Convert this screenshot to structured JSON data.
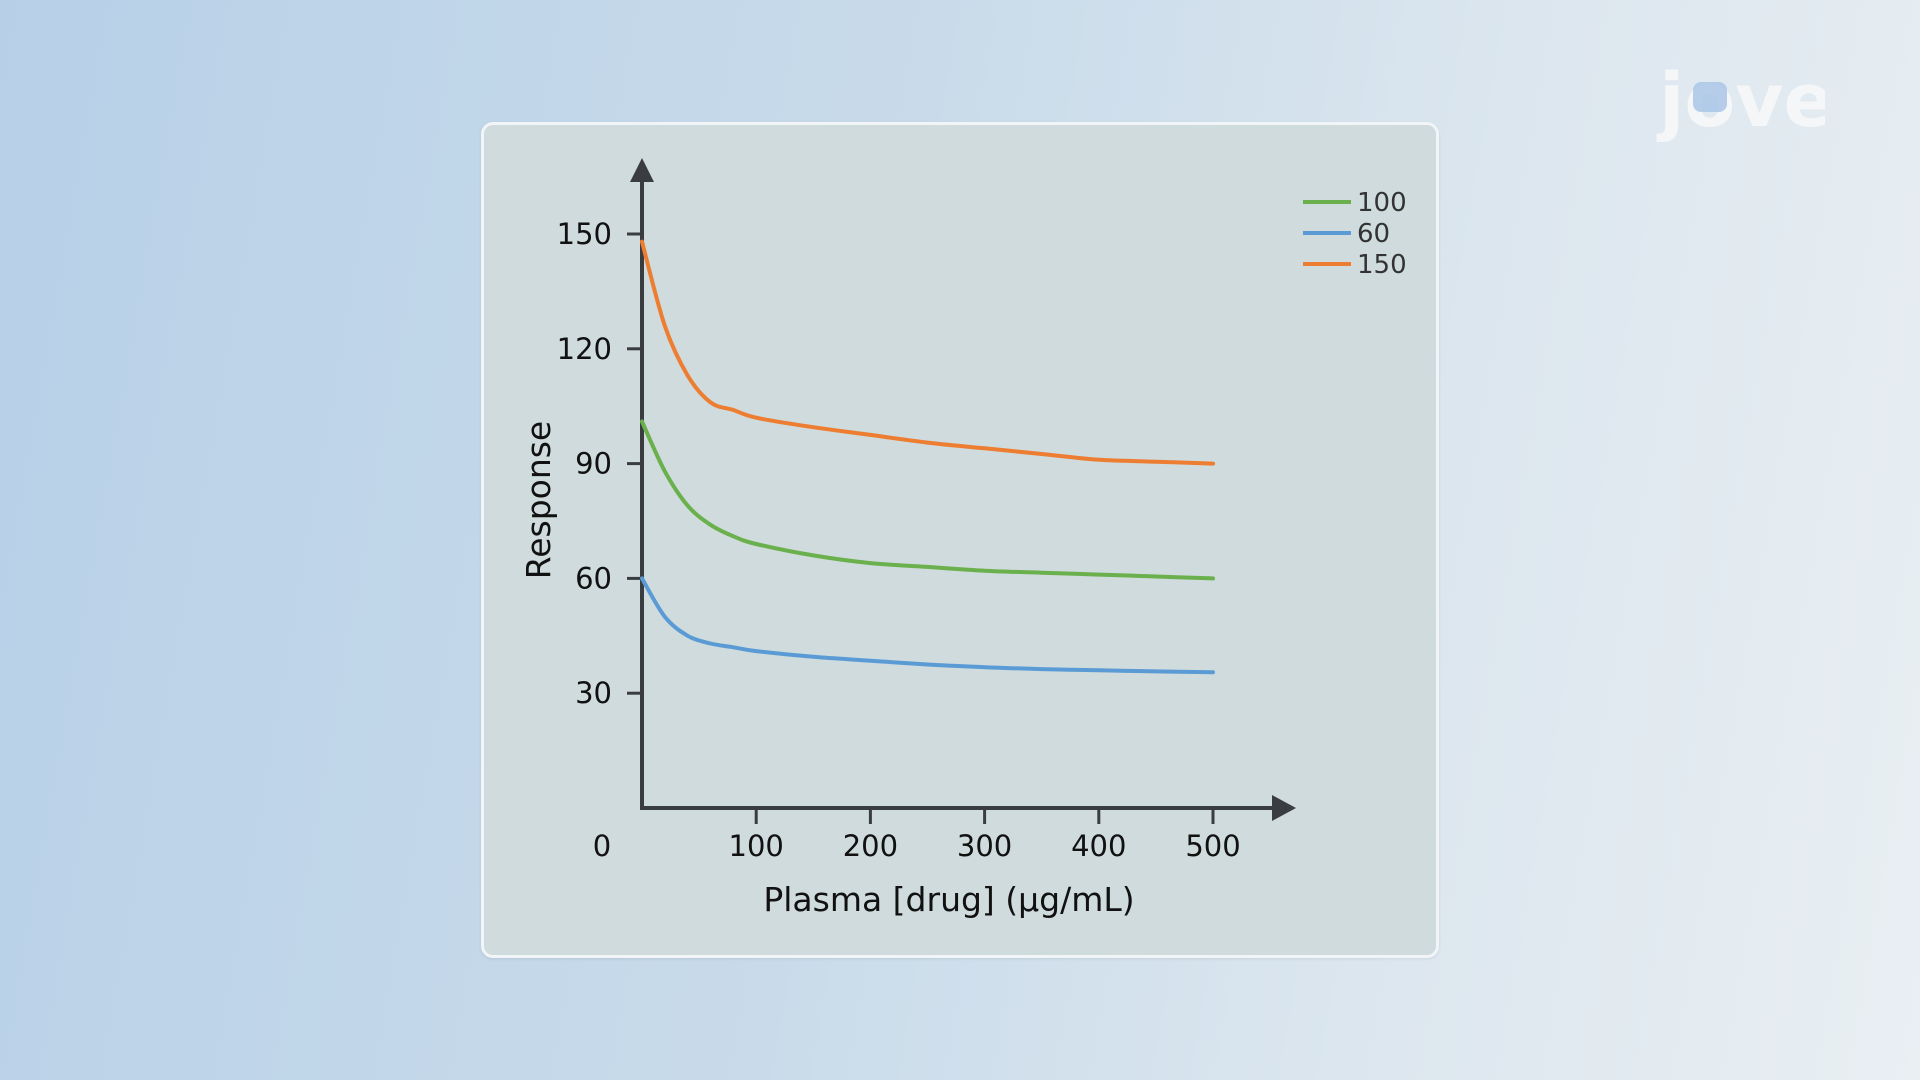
{
  "logo": {
    "text": "jove",
    "colors": {
      "letters": "#f4f6f8",
      "accent": "#a9c6e6"
    }
  },
  "chart_data": {
    "type": "line",
    "title": "",
    "xlabel": "Plasma [drug] (µg/mL)",
    "ylabel": "Response",
    "xlim": [
      0,
      500
    ],
    "ylim": [
      0,
      150
    ],
    "x_ticks": [
      100,
      200,
      300,
      400,
      500
    ],
    "y_ticks": [
      30,
      60,
      90,
      120,
      150
    ],
    "origin_label": "0",
    "grid": false,
    "legend_position": "top-right",
    "series": [
      {
        "name": "100",
        "color": "#6ab04c",
        "x": [
          0,
          20,
          40,
          60,
          80,
          100,
          150,
          200,
          250,
          300,
          350,
          400,
          450,
          500
        ],
        "y": [
          101,
          88,
          79,
          74,
          71,
          69,
          66,
          64,
          63,
          62,
          61.5,
          61,
          60.5,
          60
        ]
      },
      {
        "name": "60",
        "color": "#5b9bd5",
        "x": [
          0,
          20,
          40,
          60,
          80,
          100,
          150,
          200,
          250,
          300,
          350,
          400,
          450,
          500
        ],
        "y": [
          60,
          50,
          45,
          43,
          42,
          41,
          39.5,
          38.5,
          37.5,
          36.8,
          36.3,
          36,
          35.7,
          35.5
        ]
      },
      {
        "name": "150",
        "color": "#ed7d31",
        "x": [
          0,
          20,
          40,
          60,
          80,
          100,
          150,
          200,
          250,
          300,
          350,
          400,
          450,
          500
        ],
        "y": [
          148,
          126,
          113,
          106,
          104,
          102,
          99.5,
          97.5,
          95.5,
          94,
          92.5,
          91,
          90.5,
          90
        ]
      }
    ]
  }
}
